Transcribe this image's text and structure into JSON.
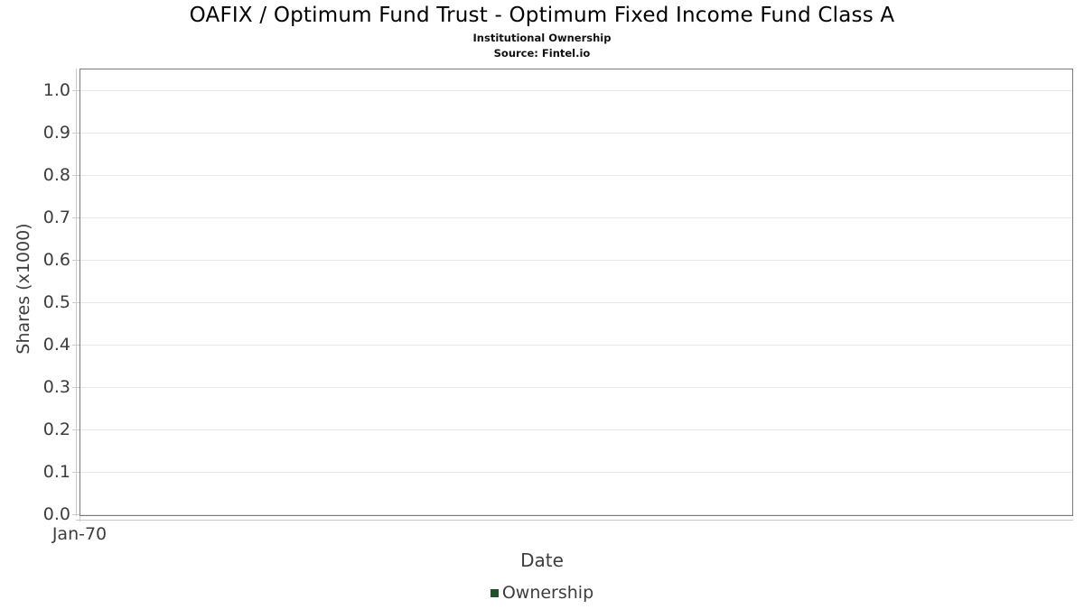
{
  "header": {
    "title": "OAFIX / Optimum Fund Trust - Optimum Fixed Income Fund Class A",
    "subtitle": "Institutional Ownership",
    "source": "Source: Fintel.io"
  },
  "chart_data": {
    "type": "line",
    "title": "OAFIX / Optimum Fund Trust - Optimum Fixed Income Fund Class A",
    "subtitle": "Institutional Ownership",
    "source": "Source: Fintel.io",
    "xlabel": "Date",
    "ylabel": "Shares (x1000)",
    "xticks": [
      "Jan-70"
    ],
    "yticks": [
      0.0,
      0.1,
      0.2,
      0.3,
      0.4,
      0.5,
      0.6,
      0.7,
      0.8,
      0.9,
      1.0
    ],
    "ytick_decimals": 1,
    "ylim": [
      0,
      1.05
    ],
    "grid": "horizontal",
    "legend_position": "bottom",
    "series": [
      {
        "name": "Ownership",
        "color": "#1f5227",
        "x": [],
        "values": []
      }
    ],
    "note_visible_data_points": 0
  },
  "colors": {
    "background": "#ffffff",
    "frame": "#7a7a7a",
    "gridline": "#e8e8e8",
    "axis_line": "#c9c9c9",
    "title_text": "#000000",
    "axis_text": "#3d3d3d",
    "legend_marker": "#1f5227"
  }
}
